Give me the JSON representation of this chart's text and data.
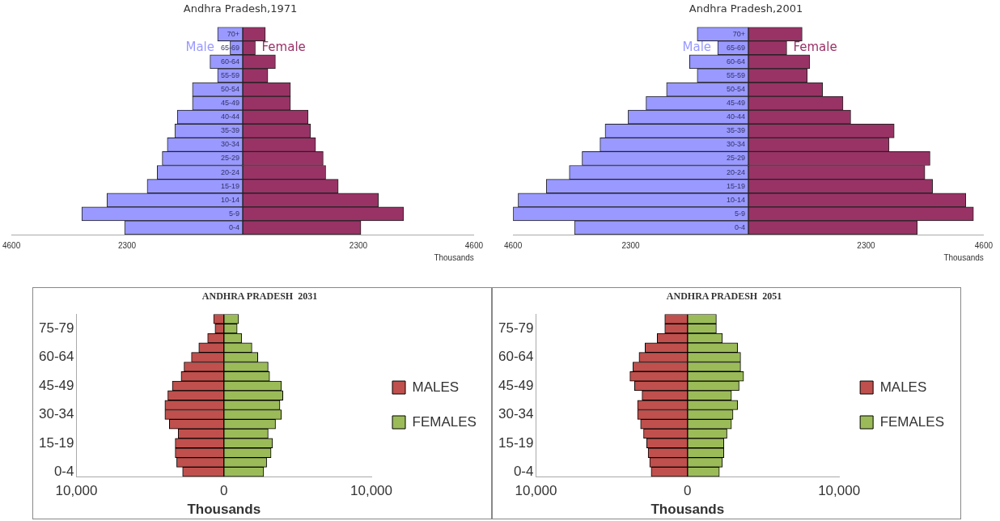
{
  "chart_data": [
    {
      "type": "bar",
      "orientation": "horizontal",
      "stacked": true,
      "title": "Andhra Pradesh,1971",
      "xlabel": "Thousands",
      "legend": false,
      "categories": [
        "70+",
        "65-69",
        "60-64",
        "55-59",
        "50-54",
        "45-49",
        "40-44",
        "35-39",
        "30-34",
        "25-29",
        "20-24",
        "15-19",
        "10-14",
        "5-9",
        "0-4"
      ],
      "xlim": [
        -4600,
        4600
      ],
      "xticks": [
        {
          "value": -4600,
          "label": "4600"
        },
        {
          "value": -2300,
          "label": "2300"
        },
        2300,
        4600
      ],
      "series": [
        {
          "name": "Male",
          "color": "#9999ff",
          "values": [
            -500,
            -250,
            -650,
            -500,
            -1000,
            -1000,
            -1300,
            -1350,
            -1500,
            -1600,
            -1700,
            -1900,
            -2700,
            -3200,
            -2350
          ]
        },
        {
          "name": "Female",
          "color": "#993366",
          "values": [
            450,
            250,
            650,
            500,
            950,
            950,
            1300,
            1350,
            1450,
            1600,
            1650,
            1900,
            2700,
            3200,
            2350
          ]
        }
      ]
    },
    {
      "type": "bar",
      "orientation": "horizontal",
      "stacked": true,
      "title": "Andhra Pradesh,2001",
      "xlabel": "Thousands",
      "legend": false,
      "categories": [
        "70+",
        "65-69",
        "60-64",
        "55-59",
        "50-54",
        "45-49",
        "40-44",
        "35-39",
        "30-34",
        "25-29",
        "20-24",
        "15-19",
        "10-14",
        "5-9",
        "0-4"
      ],
      "xlim": [
        -4600,
        4600
      ],
      "xticks": [
        {
          "value": -4600,
          "label": "4600"
        },
        {
          "value": -2300,
          "label": "2300"
        },
        2300,
        4600
      ],
      "series": [
        {
          "name": "Male",
          "color": "#9999ff",
          "values": [
            -1000,
            -600,
            -1150,
            -1000,
            -1600,
            -2000,
            -2350,
            -2800,
            -2900,
            -3250,
            -3500,
            -3950,
            -4500,
            -4600,
            -3400
          ]
        },
        {
          "name": "Female",
          "color": "#993366",
          "values": [
            1050,
            750,
            1200,
            1150,
            1450,
            1850,
            2000,
            2850,
            2750,
            3550,
            3450,
            3600,
            4250,
            4400,
            3300
          ]
        }
      ]
    },
    {
      "type": "bar",
      "orientation": "horizontal",
      "stacked": true,
      "title": "ANDHRA PRADESH  2031",
      "xlabel": "Thousands",
      "legend": "right",
      "categories": [
        null,
        "75-79",
        null,
        null,
        "60-64",
        null,
        null,
        "45-49",
        null,
        null,
        "30-34",
        null,
        null,
        "15-19",
        null,
        null,
        "0-4"
      ],
      "xlim": [
        -10000,
        10000
      ],
      "xticks": [
        {
          "value": -10000,
          "label": "10,000"
        },
        0,
        {
          "value": 10000,
          "label": "10,000"
        }
      ],
      "series": [
        {
          "name": "MALES",
          "color": "#c0504d",
          "values": [
            -700,
            -600,
            -1100,
            -1700,
            -2200,
            -2700,
            -2900,
            -3500,
            -3800,
            -4000,
            -4000,
            -3700,
            -3100,
            -3300,
            -3300,
            -3200,
            -2800
          ]
        },
        {
          "name": "FEMALES",
          "color": "#9bbb59",
          "values": [
            1000,
            900,
            1200,
            1900,
            2300,
            3000,
            3100,
            3900,
            4000,
            3800,
            3900,
            3500,
            3000,
            3300,
            3200,
            2900,
            2700
          ]
        }
      ]
    },
    {
      "type": "bar",
      "orientation": "horizontal",
      "stacked": true,
      "title": "ANDHRA PRADESH  2051",
      "xlabel": "Thousands",
      "legend": "right",
      "categories": [
        null,
        "75-79",
        null,
        null,
        "60-64",
        null,
        null,
        "45-49",
        null,
        null,
        "30-34",
        null,
        null,
        "15-19",
        null,
        null,
        "0-4"
      ],
      "xlim": [
        -10000,
        10000
      ],
      "xticks": [
        {
          "value": -10000,
          "label": "10,000"
        },
        0,
        {
          "value": 10000,
          "label": "10,000"
        }
      ],
      "series": [
        {
          "name": "MALES",
          "color": "#c0504d",
          "values": [
            -1500,
            -1500,
            -2000,
            -2800,
            -3200,
            -3600,
            -3800,
            -3500,
            -3000,
            -3300,
            -3300,
            -3100,
            -2900,
            -2700,
            -2600,
            -2500,
            -2400
          ]
        },
        {
          "name": "FEMALES",
          "color": "#9bbb59",
          "values": [
            1900,
            1900,
            2300,
            3300,
            3500,
            3500,
            3700,
            3400,
            2900,
            3300,
            3000,
            2900,
            2600,
            2400,
            2400,
            2300,
            2100
          ]
        }
      ]
    }
  ]
}
